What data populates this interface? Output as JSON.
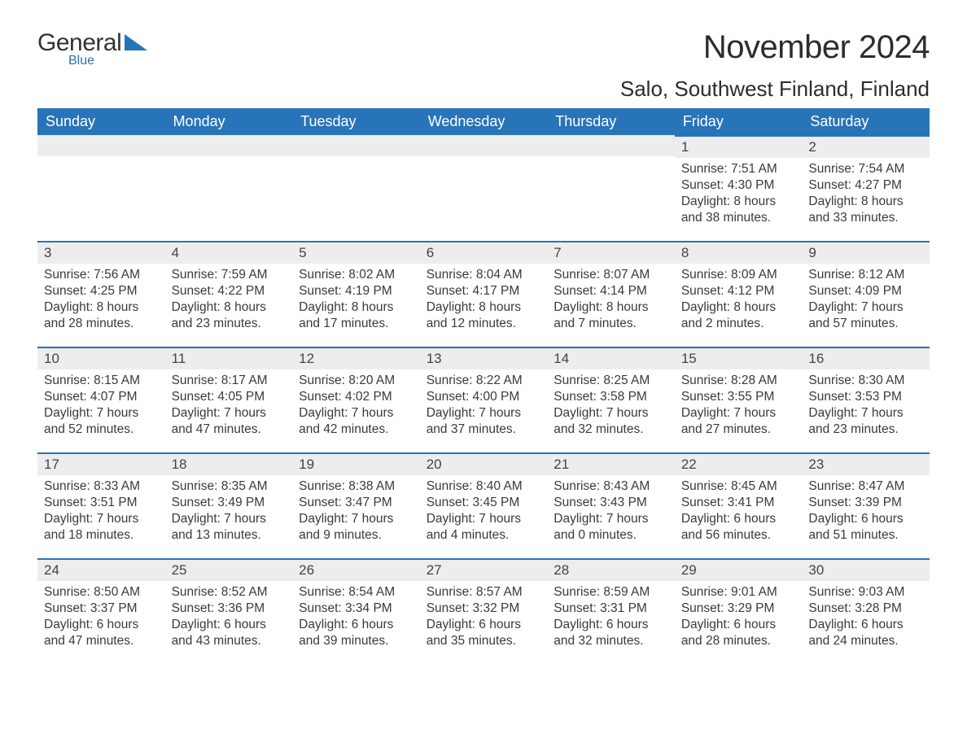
{
  "logo": {
    "word1": "General",
    "word2": "Blue",
    "triangle_color": "#2874b8"
  },
  "title": "November 2024",
  "location": "Salo, Southwest Finland, Finland",
  "header_bg": "#2874b8",
  "day_header_bg": "#ededed",
  "week_border_color": "#2874b8",
  "text_color": "#3a3a3a",
  "day_names": [
    "Sunday",
    "Monday",
    "Tuesday",
    "Wednesday",
    "Thursday",
    "Friday",
    "Saturday"
  ],
  "weeks": [
    [
      null,
      null,
      null,
      null,
      null,
      {
        "n": "1",
        "sunrise": "7:51 AM",
        "sunset": "4:30 PM",
        "day_h": "8",
        "day_m": "38"
      },
      {
        "n": "2",
        "sunrise": "7:54 AM",
        "sunset": "4:27 PM",
        "day_h": "8",
        "day_m": "33"
      }
    ],
    [
      {
        "n": "3",
        "sunrise": "7:56 AM",
        "sunset": "4:25 PM",
        "day_h": "8",
        "day_m": "28"
      },
      {
        "n": "4",
        "sunrise": "7:59 AM",
        "sunset": "4:22 PM",
        "day_h": "8",
        "day_m": "23"
      },
      {
        "n": "5",
        "sunrise": "8:02 AM",
        "sunset": "4:19 PM",
        "day_h": "8",
        "day_m": "17"
      },
      {
        "n": "6",
        "sunrise": "8:04 AM",
        "sunset": "4:17 PM",
        "day_h": "8",
        "day_m": "12"
      },
      {
        "n": "7",
        "sunrise": "8:07 AM",
        "sunset": "4:14 PM",
        "day_h": "8",
        "day_m": "7"
      },
      {
        "n": "8",
        "sunrise": "8:09 AM",
        "sunset": "4:12 PM",
        "day_h": "8",
        "day_m": "2"
      },
      {
        "n": "9",
        "sunrise": "8:12 AM",
        "sunset": "4:09 PM",
        "day_h": "7",
        "day_m": "57"
      }
    ],
    [
      {
        "n": "10",
        "sunrise": "8:15 AM",
        "sunset": "4:07 PM",
        "day_h": "7",
        "day_m": "52"
      },
      {
        "n": "11",
        "sunrise": "8:17 AM",
        "sunset": "4:05 PM",
        "day_h": "7",
        "day_m": "47"
      },
      {
        "n": "12",
        "sunrise": "8:20 AM",
        "sunset": "4:02 PM",
        "day_h": "7",
        "day_m": "42"
      },
      {
        "n": "13",
        "sunrise": "8:22 AM",
        "sunset": "4:00 PM",
        "day_h": "7",
        "day_m": "37"
      },
      {
        "n": "14",
        "sunrise": "8:25 AM",
        "sunset": "3:58 PM",
        "day_h": "7",
        "day_m": "32"
      },
      {
        "n": "15",
        "sunrise": "8:28 AM",
        "sunset": "3:55 PM",
        "day_h": "7",
        "day_m": "27"
      },
      {
        "n": "16",
        "sunrise": "8:30 AM",
        "sunset": "3:53 PM",
        "day_h": "7",
        "day_m": "23"
      }
    ],
    [
      {
        "n": "17",
        "sunrise": "8:33 AM",
        "sunset": "3:51 PM",
        "day_h": "7",
        "day_m": "18"
      },
      {
        "n": "18",
        "sunrise": "8:35 AM",
        "sunset": "3:49 PM",
        "day_h": "7",
        "day_m": "13"
      },
      {
        "n": "19",
        "sunrise": "8:38 AM",
        "sunset": "3:47 PM",
        "day_h": "7",
        "day_m": "9"
      },
      {
        "n": "20",
        "sunrise": "8:40 AM",
        "sunset": "3:45 PM",
        "day_h": "7",
        "day_m": "4"
      },
      {
        "n": "21",
        "sunrise": "8:43 AM",
        "sunset": "3:43 PM",
        "day_h": "7",
        "day_m": "0"
      },
      {
        "n": "22",
        "sunrise": "8:45 AM",
        "sunset": "3:41 PM",
        "day_h": "6",
        "day_m": "56"
      },
      {
        "n": "23",
        "sunrise": "8:47 AM",
        "sunset": "3:39 PM",
        "day_h": "6",
        "day_m": "51"
      }
    ],
    [
      {
        "n": "24",
        "sunrise": "8:50 AM",
        "sunset": "3:37 PM",
        "day_h": "6",
        "day_m": "47"
      },
      {
        "n": "25",
        "sunrise": "8:52 AM",
        "sunset": "3:36 PM",
        "day_h": "6",
        "day_m": "43"
      },
      {
        "n": "26",
        "sunrise": "8:54 AM",
        "sunset": "3:34 PM",
        "day_h": "6",
        "day_m": "39"
      },
      {
        "n": "27",
        "sunrise": "8:57 AM",
        "sunset": "3:32 PM",
        "day_h": "6",
        "day_m": "35"
      },
      {
        "n": "28",
        "sunrise": "8:59 AM",
        "sunset": "3:31 PM",
        "day_h": "6",
        "day_m": "32"
      },
      {
        "n": "29",
        "sunrise": "9:01 AM",
        "sunset": "3:29 PM",
        "day_h": "6",
        "day_m": "28"
      },
      {
        "n": "30",
        "sunrise": "9:03 AM",
        "sunset": "3:28 PM",
        "day_h": "6",
        "day_m": "24"
      }
    ]
  ],
  "labels": {
    "sunrise_prefix": "Sunrise: ",
    "sunset_prefix": "Sunset: ",
    "daylight_prefix": "Daylight: ",
    "hours_word": " hours",
    "and_word": "and ",
    "minutes_word": " minutes."
  }
}
